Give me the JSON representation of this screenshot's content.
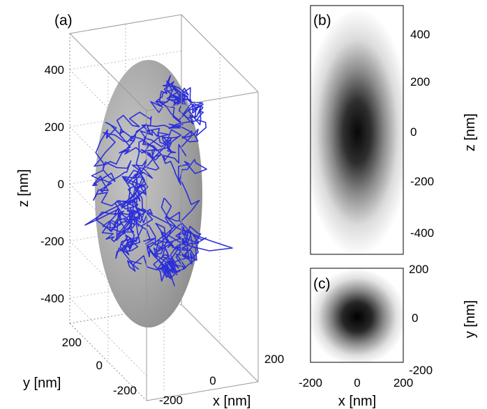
{
  "chart_data": [
    {
      "panel_label": "(a)",
      "type": "scatter",
      "subtype": "3d-random-walk-trajectory",
      "xlabel": "x [nm]",
      "ylabel": "y [nm]",
      "zlabel": "z [nm]",
      "xlim": [
        -200,
        200
      ],
      "ylim": [
        -200,
        200
      ],
      "zlim": [
        -500,
        500
      ],
      "x_ticks": [
        "-200",
        "0",
        "200"
      ],
      "y_ticks": [
        "-200",
        "0",
        "200"
      ],
      "z_ticks": [
        "-400",
        "-200",
        "0",
        "200",
        "400"
      ],
      "ellipsoid_semi_axes_nm": {
        "x": 200,
        "y": 200,
        "z": 430
      },
      "colors": {
        "trajectory": "#2b2fd9",
        "ellipsoid": "#a8a8a8",
        "box": "#000000"
      },
      "grid": true,
      "legend": "none"
    },
    {
      "panel_label": "(b)",
      "type": "heatmap",
      "subtype": "x-z projection density",
      "xlim": [
        -200,
        200
      ],
      "ylim": [
        -500,
        500
      ],
      "ylabel": "z [nm]",
      "y_ticks": [
        "400",
        "200",
        "0",
        "-200",
        "-400"
      ],
      "y_axis_side": "right",
      "peak_at": [
        0,
        0
      ],
      "spread_nm": {
        "x": 80,
        "z": 170
      },
      "colormap": "white-to-black"
    },
    {
      "panel_label": "(c)",
      "type": "heatmap",
      "subtype": "x-y projection density",
      "xlim": [
        -200,
        200
      ],
      "ylim": [
        -200,
        200
      ],
      "xlabel": "x [nm]",
      "ylabel": "y [nm]",
      "x_ticks": [
        "-200",
        "0",
        "200"
      ],
      "y_ticks": [
        "200",
        "0",
        "-200"
      ],
      "y_axis_side": "right",
      "peak_at": [
        0,
        0
      ],
      "spread_nm": {
        "x": 80,
        "y": 80
      },
      "colormap": "white-to-black"
    }
  ]
}
